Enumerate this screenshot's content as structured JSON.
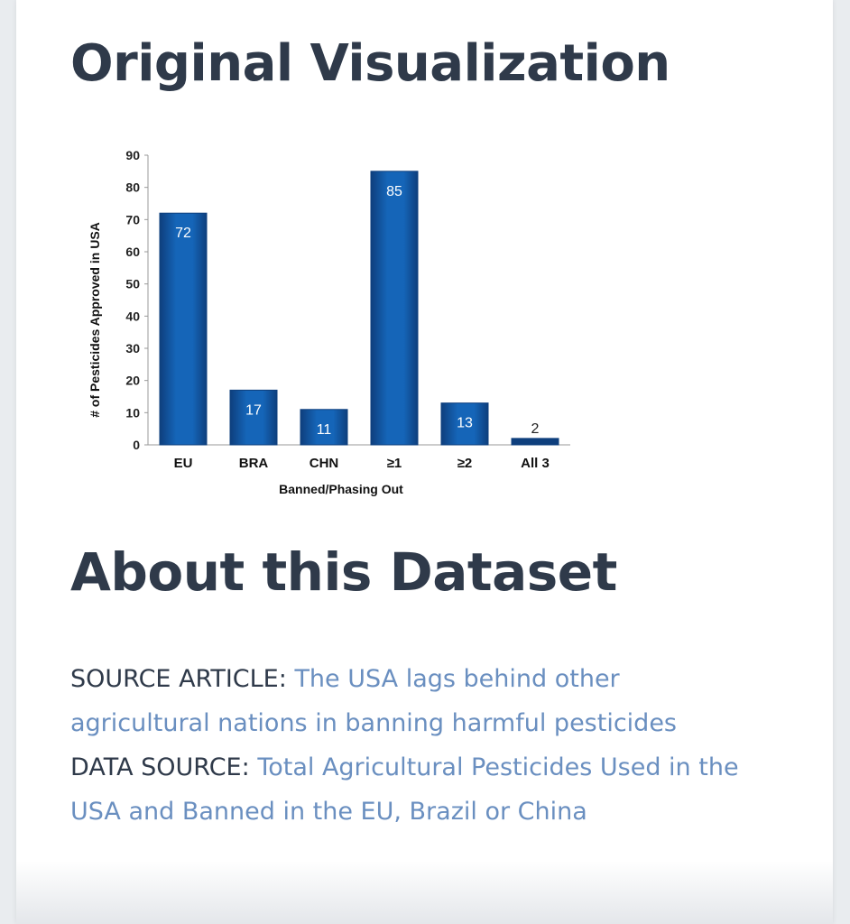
{
  "page": {
    "visualization_heading": "Original Visualization",
    "about_heading": "About this Dataset",
    "source_article_label": "SOURCE ARTICLE:",
    "source_article_link": "The USA lags behind other agricultural nations in banning harmful pesticides",
    "data_source_label": "DATA SOURCE:",
    "data_source_link": "Total Agricultural Pesticides Used in the USA and Banned in the EU, Brazil or China"
  },
  "colors": {
    "bar": "#1565b8",
    "bar_dark": "#0e3f7d",
    "heading": "#2f3a4a",
    "link": "#6a8fc0"
  },
  "chart_data": {
    "type": "bar",
    "categories": [
      "EU",
      "BRA",
      "CHN",
      "≥1",
      "≥2",
      "All 3"
    ],
    "values": [
      72,
      17,
      11,
      85,
      13,
      2
    ],
    "data_labels": [
      "72",
      "17",
      "11",
      "85",
      "13",
      "2"
    ],
    "xlabel": "Banned/Phasing Out",
    "ylabel": "# of Pesticides Approved in USA",
    "ylim": [
      0,
      90
    ],
    "yticks": [
      "0",
      "10",
      "20",
      "30",
      "40",
      "50",
      "60",
      "70",
      "80",
      "90"
    ],
    "grid": false,
    "legend": "none"
  }
}
